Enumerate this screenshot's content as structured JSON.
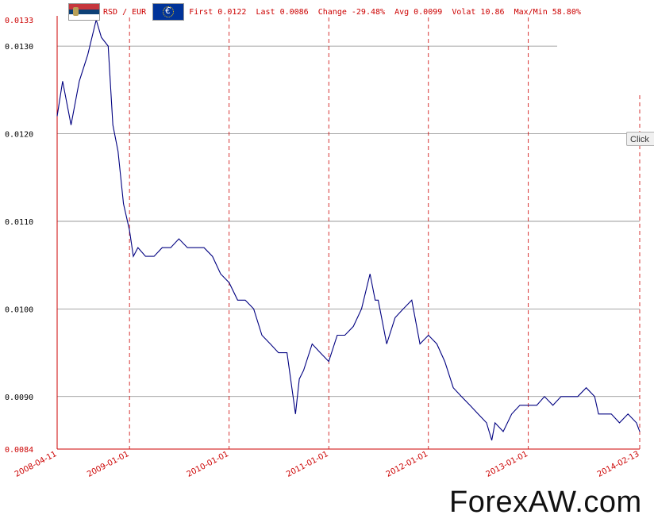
{
  "header": {
    "pair": "RSD / EUR",
    "first": "First 0.0122",
    "last": "Last 0.0086",
    "change": "Change -29.48%",
    "avg": "Avg 0.0099",
    "volat": "Volat 10.86",
    "maxmin": "Max/Min 58.80%",
    "flag_left_icon": "serbia-flag-icon",
    "flag_right_icon": "euro-flag-icon"
  },
  "click_button": "Click",
  "watermark": "ForexAW.com",
  "chart_data": {
    "type": "line",
    "title": "",
    "xlabel": "",
    "ylabel": "",
    "series_color": "#000080",
    "grid": true,
    "y_ticks": [
      {
        "label": "0.0133",
        "value": 0.0133,
        "color": "#cc0000"
      },
      {
        "label": "0.0130",
        "value": 0.013,
        "color": "#000000"
      },
      {
        "label": "0.0120",
        "value": 0.012,
        "color": "#000000"
      },
      {
        "label": "0.0110",
        "value": 0.011,
        "color": "#000000"
      },
      {
        "label": "0.0100",
        "value": 0.01,
        "color": "#000000"
      },
      {
        "label": "0.0090",
        "value": 0.009,
        "color": "#000000"
      },
      {
        "label": "0.0084",
        "value": 0.0084,
        "color": "#cc0000"
      }
    ],
    "ylim": [
      0.0084,
      0.0133
    ],
    "x_ticks": [
      "2008-04-11",
      "2009-01-01",
      "2010-01-01",
      "2011-01-01",
      "2012-01-01",
      "2013-01-01",
      "2014-02-13"
    ],
    "xlim": [
      "2008-04-11",
      "2014-02-13"
    ],
    "points": [
      [
        "2008-04-11",
        0.0122
      ],
      [
        "2008-05-01",
        0.0126
      ],
      [
        "2008-06-01",
        0.0121
      ],
      [
        "2008-07-01",
        0.0126
      ],
      [
        "2008-08-01",
        0.0129
      ],
      [
        "2008-09-01",
        0.0133
      ],
      [
        "2008-09-20",
        0.0131
      ],
      [
        "2008-10-15",
        0.013
      ],
      [
        "2008-11-01",
        0.0121
      ],
      [
        "2008-11-20",
        0.0118
      ],
      [
        "2008-12-10",
        0.0112
      ],
      [
        "2009-01-01",
        0.0109
      ],
      [
        "2009-01-15",
        0.0106
      ],
      [
        "2009-02-01",
        0.0107
      ],
      [
        "2009-03-01",
        0.0106
      ],
      [
        "2009-04-01",
        0.0106
      ],
      [
        "2009-05-01",
        0.0107
      ],
      [
        "2009-06-01",
        0.0107
      ],
      [
        "2009-07-01",
        0.0108
      ],
      [
        "2009-08-01",
        0.0107
      ],
      [
        "2009-09-01",
        0.0107
      ],
      [
        "2009-10-01",
        0.0107
      ],
      [
        "2009-11-01",
        0.0106
      ],
      [
        "2009-12-01",
        0.0104
      ],
      [
        "2010-01-01",
        0.0103
      ],
      [
        "2010-02-01",
        0.0101
      ],
      [
        "2010-03-01",
        0.0101
      ],
      [
        "2010-04-01",
        0.01
      ],
      [
        "2010-05-01",
        0.0097
      ],
      [
        "2010-06-01",
        0.0096
      ],
      [
        "2010-07-01",
        0.0095
      ],
      [
        "2010-08-01",
        0.0095
      ],
      [
        "2010-09-01",
        0.0088
      ],
      [
        "2010-09-15",
        0.0092
      ],
      [
        "2010-10-01",
        0.0093
      ],
      [
        "2010-11-01",
        0.0096
      ],
      [
        "2010-12-01",
        0.0095
      ],
      [
        "2011-01-01",
        0.0094
      ],
      [
        "2011-02-01",
        0.0097
      ],
      [
        "2011-03-01",
        0.0097
      ],
      [
        "2011-04-01",
        0.0098
      ],
      [
        "2011-05-01",
        0.01
      ],
      [
        "2011-06-01",
        0.0104
      ],
      [
        "2011-06-20",
        0.0101
      ],
      [
        "2011-07-01",
        0.0101
      ],
      [
        "2011-08-01",
        0.0096
      ],
      [
        "2011-09-01",
        0.0099
      ],
      [
        "2011-10-01",
        0.01
      ],
      [
        "2011-11-01",
        0.0101
      ],
      [
        "2011-12-01",
        0.0096
      ],
      [
        "2012-01-01",
        0.0097
      ],
      [
        "2012-02-01",
        0.0096
      ],
      [
        "2012-03-01",
        0.0094
      ],
      [
        "2012-04-01",
        0.0091
      ],
      [
        "2012-05-01",
        0.009
      ],
      [
        "2012-06-01",
        0.0089
      ],
      [
        "2012-07-01",
        0.0088
      ],
      [
        "2012-08-01",
        0.0087
      ],
      [
        "2012-08-20",
        0.0085
      ],
      [
        "2012-09-01",
        0.0087
      ],
      [
        "2012-10-01",
        0.0086
      ],
      [
        "2012-11-01",
        0.0088
      ],
      [
        "2012-12-01",
        0.0089
      ],
      [
        "2013-01-01",
        0.0089
      ],
      [
        "2013-02-01",
        0.0089
      ],
      [
        "2013-03-01",
        0.009
      ],
      [
        "2013-04-01",
        0.0089
      ],
      [
        "2013-05-01",
        0.009
      ],
      [
        "2013-06-01",
        0.009
      ],
      [
        "2013-07-01",
        0.009
      ],
      [
        "2013-08-01",
        0.0091
      ],
      [
        "2013-09-01",
        0.009
      ],
      [
        "2013-09-15",
        0.0088
      ],
      [
        "2013-10-01",
        0.0088
      ],
      [
        "2013-11-01",
        0.0088
      ],
      [
        "2013-12-01",
        0.0087
      ],
      [
        "2014-01-01",
        0.0088
      ],
      [
        "2014-02-01",
        0.0087
      ],
      [
        "2014-02-13",
        0.0086
      ]
    ]
  }
}
